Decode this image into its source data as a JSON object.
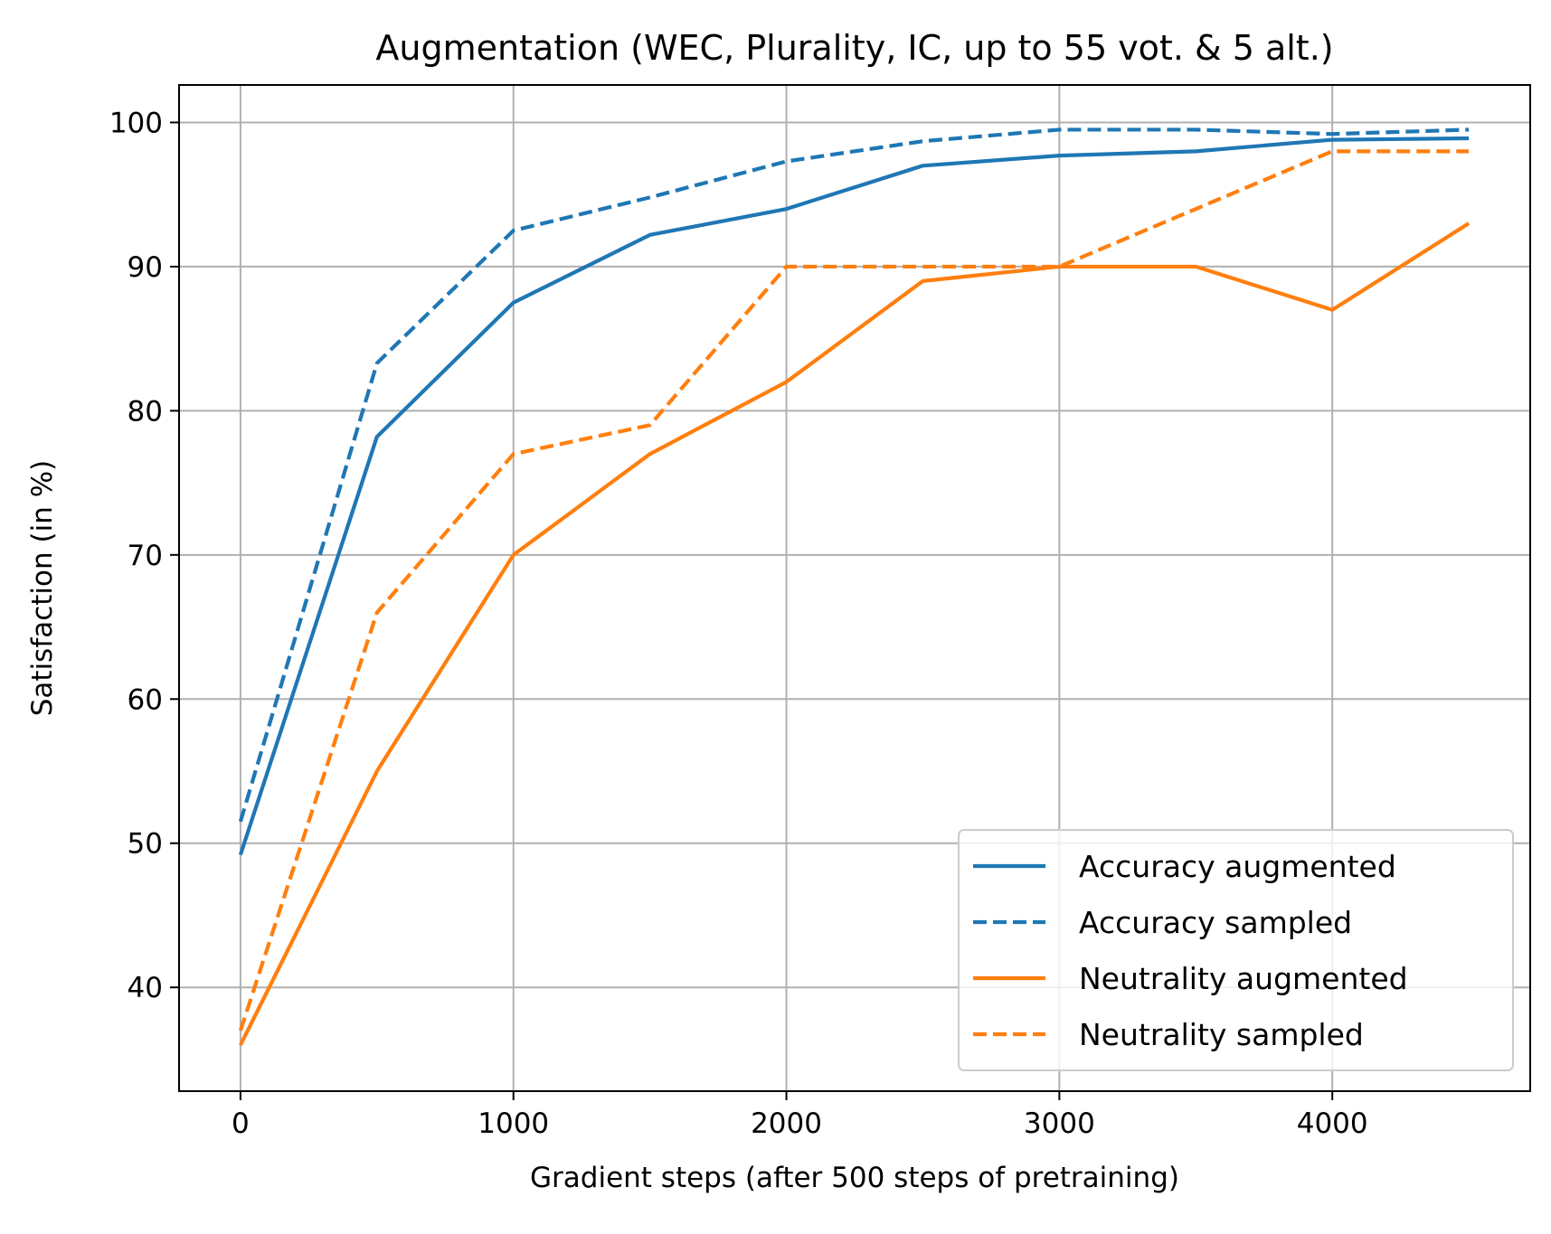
{
  "chart_data": {
    "type": "line",
    "title": "Augmentation (WEC, Plurality, IC, up to 55 vot. & 5 alt.)",
    "xlabel": "Gradient steps (after 500 steps of pretraining)",
    "ylabel": "Satisfaction (in %)",
    "xlim": [
      -225,
      4725
    ],
    "ylim": [
      32.8,
      102.6
    ],
    "xticks": [
      0,
      1000,
      2000,
      3000,
      4000
    ],
    "yticks": [
      40,
      50,
      60,
      70,
      80,
      90,
      100
    ],
    "grid": true,
    "legend_position": "lower right",
    "x": [
      0,
      500,
      1000,
      1500,
      2000,
      2500,
      3000,
      3500,
      4000,
      4500
    ],
    "series": [
      {
        "name": "Accuracy augmented",
        "color": "#1f77b4",
        "style": "solid",
        "values": [
          49.2,
          78.2,
          87.5,
          92.2,
          94.0,
          97.0,
          97.7,
          98.0,
          98.8,
          98.9
        ]
      },
      {
        "name": "Accuracy sampled",
        "color": "#1f77b4",
        "style": "dashed",
        "values": [
          51.5,
          83.3,
          92.5,
          94.8,
          97.3,
          98.7,
          99.5,
          99.5,
          99.2,
          99.5
        ]
      },
      {
        "name": "Neutrality augmented",
        "color": "#ff7f0e",
        "style": "solid",
        "values": [
          36,
          55,
          70,
          77,
          82,
          89,
          90,
          90,
          87,
          93
        ]
      },
      {
        "name": "Neutrality sampled",
        "color": "#ff7f0e",
        "style": "dashed",
        "values": [
          37,
          66,
          77,
          79,
          90,
          90,
          90,
          94,
          98,
          98
        ]
      }
    ]
  }
}
